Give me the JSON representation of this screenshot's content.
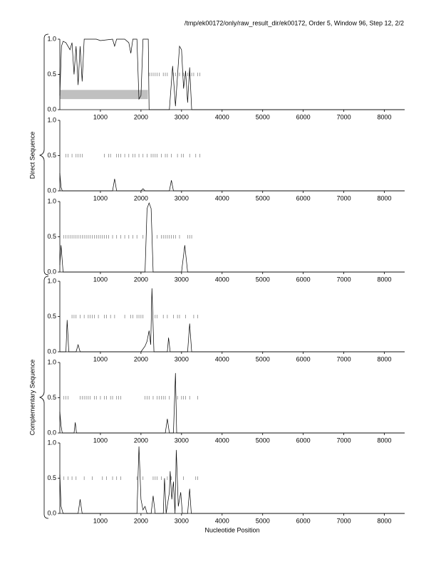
{
  "header": "/tmp/ek00172/only/raw_result_dir/ek00172, Order 5, Window 96, Step 12, 2/2",
  "y_labels": [
    "Direct Sequence",
    "Complementary Sequence"
  ],
  "x_label": "Nucleotide Position",
  "chart_data": [
    {
      "type": "line",
      "color": "#000000",
      "marker_color": "#777777",
      "marker_level": 0.5,
      "x": [
        0,
        40,
        80,
        150,
        250,
        300,
        350,
        400,
        450,
        500,
        550,
        600,
        650,
        900,
        1000,
        1300,
        1350,
        1400,
        1600,
        1700,
        1750,
        1800,
        1900,
        1950,
        2000,
        2050,
        2100,
        2180,
        2200,
        2700,
        2780,
        2850,
        2950,
        3000,
        3050,
        3100,
        3150,
        3200,
        3250,
        3300,
        8500
      ],
      "values": [
        0.2,
        0.9,
        0.97,
        0.95,
        0.85,
        0.95,
        0.5,
        0.9,
        0.35,
        0.9,
        0.4,
        1,
        1,
        1,
        0.98,
        1,
        0.9,
        1,
        1,
        0.95,
        0.8,
        1,
        1,
        0.15,
        0.2,
        1,
        1,
        1,
        0,
        0,
        0.62,
        0.05,
        0.9,
        0.85,
        0.3,
        0.55,
        0.1,
        0.6,
        0,
        0,
        0
      ],
      "markers": [
        2200,
        2250,
        2300,
        2350,
        2400,
        2450,
        2550,
        2600,
        2650,
        2800,
        2850,
        2950,
        3050,
        3100,
        3150,
        3200,
        3250,
        3300,
        3400,
        3450
      ],
      "regions": [
        {
          "start": 0,
          "end": 2170,
          "low": 0.15,
          "high": 0.28,
          "color": "#c0c0c0"
        }
      ],
      "xlim": [
        0,
        8500
      ],
      "ylim": [
        0,
        1
      ],
      "xticks": [
        1000,
        2000,
        3000,
        4000,
        5000,
        6000,
        7000,
        8000
      ],
      "yticks": [
        {
          "value": 0,
          "label": "0.0"
        },
        {
          "value": 0.5,
          "label": "0.5"
        },
        {
          "value": 1,
          "label": "1.0"
        }
      ]
    },
    {
      "type": "line",
      "color": "#000000",
      "marker_color": "#777777",
      "marker_level": 0.5,
      "x": [
        0,
        30,
        60,
        1300,
        1350,
        1400,
        2000,
        2050,
        2100,
        2700,
        2750,
        2800,
        8500
      ],
      "values": [
        0.25,
        0.05,
        0,
        0,
        0.17,
        0,
        0,
        0.03,
        0,
        0,
        0.15,
        0,
        0
      ],
      "markers": [
        150,
        200,
        300,
        400,
        450,
        500,
        550,
        1100,
        1200,
        1250,
        1400,
        1450,
        1500,
        1600,
        1700,
        1800,
        1850,
        1950,
        2050,
        2150,
        2250,
        2300,
        2350,
        2400,
        2500,
        2600,
        2650,
        2750,
        2900,
        3000,
        3050,
        3200,
        3350,
        3450
      ],
      "xlim": [
        0,
        8500
      ],
      "ylim": [
        0,
        1
      ],
      "xticks": [
        1000,
        2000,
        3000,
        4000,
        5000,
        6000,
        7000,
        8000
      ],
      "yticks": [
        {
          "value": 0,
          "label": "0.0"
        },
        {
          "value": 0.5,
          "label": "0.5"
        },
        {
          "value": 1,
          "label": "1.0"
        }
      ]
    },
    {
      "type": "line",
      "color": "#000000",
      "marker_color": "#777777",
      "marker_level": 0.5,
      "x": [
        0,
        30,
        80,
        2100,
        2150,
        2200,
        2250,
        2300,
        3000,
        3080,
        3150,
        8500
      ],
      "values": [
        0.1,
        0.38,
        0,
        0,
        0.9,
        0.98,
        0.9,
        0,
        0,
        0.38,
        0,
        0
      ],
      "markers": [
        100,
        150,
        200,
        250,
        300,
        350,
        400,
        450,
        500,
        550,
        600,
        650,
        700,
        750,
        800,
        850,
        900,
        950,
        1000,
        1050,
        1100,
        1150,
        1200,
        1300,
        1400,
        1500,
        1600,
        1700,
        1800,
        1900,
        2050,
        2400,
        2500,
        2550,
        2600,
        2650,
        2700,
        2750,
        2800,
        2850,
        2950,
        3150,
        3200,
        3250
      ],
      "xlim": [
        0,
        8500
      ],
      "ylim": [
        0,
        1
      ],
      "xticks": [
        1000,
        2000,
        3000,
        4000,
        5000,
        6000,
        7000,
        8000
      ],
      "yticks": [
        {
          "value": 0,
          "label": "0.0"
        },
        {
          "value": 0.5,
          "label": "0.5"
        },
        {
          "value": 1,
          "label": "1.0"
        }
      ]
    },
    {
      "type": "line",
      "color": "#000000",
      "marker_color": "#777777",
      "marker_level": 0.5,
      "x": [
        0,
        150,
        180,
        220,
        400,
        450,
        500,
        2000,
        2100,
        2150,
        2200,
        2240,
        2270,
        2320,
        2650,
        2680,
        2720,
        3150,
        3200,
        3250,
        8500
      ],
      "values": [
        0,
        0,
        0.45,
        0,
        0,
        0.1,
        0,
        0,
        0.08,
        0.15,
        0.3,
        0.1,
        0.9,
        0,
        0,
        0.2,
        0,
        0,
        0.4,
        0,
        0
      ],
      "markers": [
        300,
        350,
        400,
        500,
        600,
        700,
        750,
        800,
        850,
        950,
        1100,
        1150,
        1250,
        1350,
        1600,
        1750,
        1800,
        1900,
        1950,
        2000,
        2050,
        2350,
        2400,
        2550,
        2650,
        2800,
        2900,
        2950,
        3100,
        3300,
        3400
      ],
      "xlim": [
        0,
        8500
      ],
      "ylim": [
        0,
        1
      ],
      "xticks": [
        1000,
        2000,
        3000,
        4000,
        5000,
        6000,
        7000,
        8000
      ],
      "yticks": [
        {
          "value": 0,
          "label": "0.0"
        },
        {
          "value": 0.5,
          "label": "0.5"
        },
        {
          "value": 1,
          "label": "1.0"
        }
      ]
    },
    {
      "type": "line",
      "color": "#000000",
      "marker_color": "#777777",
      "marker_level": 0.5,
      "x": [
        0,
        30,
        60,
        350,
        380,
        410,
        2600,
        2650,
        2700,
        2800,
        2850,
        2880,
        8500
      ],
      "values": [
        0.3,
        0.1,
        0,
        0,
        0.15,
        0,
        0,
        0.2,
        0,
        0,
        0.85,
        0,
        0
      ],
      "markers": [
        100,
        150,
        200,
        500,
        550,
        600,
        650,
        700,
        750,
        850,
        900,
        1000,
        1100,
        1150,
        1250,
        1300,
        1400,
        1450,
        1500,
        2100,
        2150,
        2200,
        2300,
        2400,
        2450,
        2500,
        2550,
        2600,
        2700,
        2900,
        3000,
        3050,
        3100,
        3200,
        3400
      ],
      "xlim": [
        0,
        8500
      ],
      "ylim": [
        0,
        1
      ],
      "xticks": [
        1000,
        2000,
        3000,
        4000,
        5000,
        6000,
        7000,
        8000
      ],
      "yticks": [
        {
          "value": 0,
          "label": "0.0"
        },
        {
          "value": 0.5,
          "label": "0.5"
        },
        {
          "value": 1,
          "label": "1.0"
        }
      ]
    },
    {
      "type": "line",
      "color": "#000000",
      "marker_color": "#777777",
      "marker_level": 0.5,
      "x": [
        0,
        30,
        80,
        450,
        500,
        550,
        1900,
        1950,
        2000,
        2050,
        2100,
        2150,
        2250,
        2300,
        2350,
        2550,
        2580,
        2620,
        2700,
        2720,
        2760,
        2800,
        2840,
        2870,
        2920,
        2980,
        3020,
        3150,
        3200,
        3240,
        8500
      ],
      "values": [
        0.55,
        0.1,
        0,
        0,
        0.2,
        0,
        0,
        0.95,
        0.2,
        0.05,
        0.1,
        0,
        0,
        0.25,
        0,
        0,
        0.5,
        0,
        0.3,
        0.6,
        0.2,
        0.45,
        0,
        0.9,
        0.1,
        0.3,
        0,
        0,
        0.35,
        0,
        0
      ],
      "markers": [
        100,
        200,
        300,
        400,
        600,
        800,
        1050,
        1150,
        1300,
        1400,
        1500,
        1900,
        2050,
        2300,
        2350,
        2400,
        2500,
        2650,
        2750,
        3050,
        3350,
        3400
      ],
      "xlim": [
        0,
        8500
      ],
      "ylim": [
        0,
        1
      ],
      "xticks": [
        1000,
        2000,
        3000,
        4000,
        5000,
        6000,
        7000,
        8000
      ],
      "yticks": [
        {
          "value": 0,
          "label": "0.0"
        },
        {
          "value": 0.5,
          "label": "0.5"
        },
        {
          "value": 1,
          "label": "1.0"
        }
      ]
    }
  ]
}
